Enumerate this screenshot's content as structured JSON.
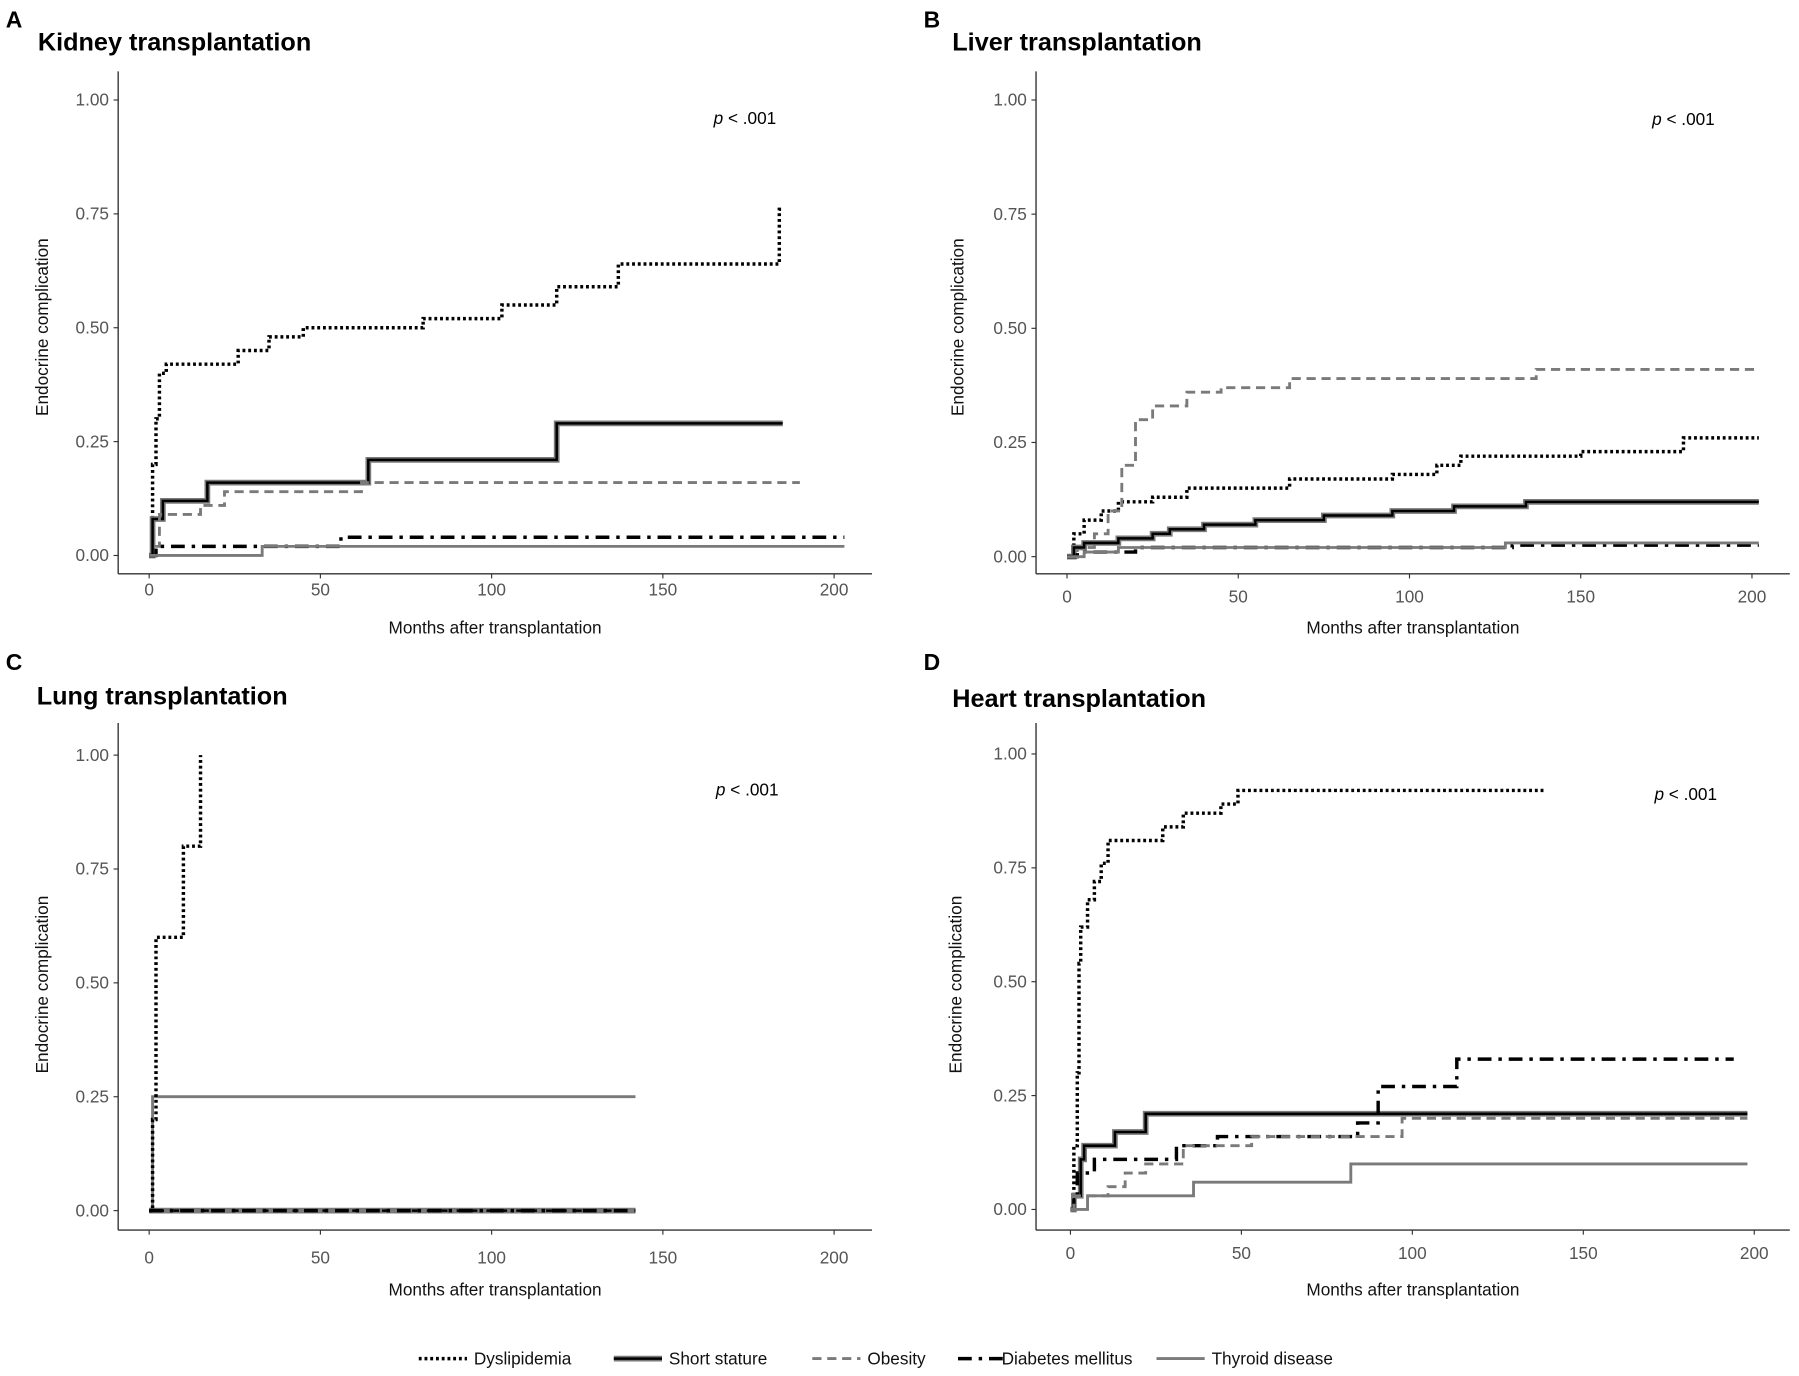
{
  "legend": [
    {
      "key": "dys",
      "label": "Dyslipidemia"
    },
    {
      "key": "short",
      "label": "Short stature"
    },
    {
      "key": "obes",
      "label": "Obesity"
    },
    {
      "key": "dm",
      "label": "Diabetes mellitus"
    },
    {
      "key": "thy",
      "label": "Thyroid disease"
    }
  ],
  "colors": {
    "dark": "#000000",
    "grey": "#7a7a7a",
    "axis": "#333333"
  },
  "chart_data": [
    {
      "type": "line",
      "letter": "A",
      "title": "Kidney transplantation",
      "pvalue_prefix": "p",
      "pvalue": " < .001",
      "xlabel": "Months after transplantation",
      "ylabel": "Endocrine complication",
      "xlim": [
        0,
        200
      ],
      "ylim": [
        0,
        1
      ],
      "xticks": [
        "0",
        "50",
        "100",
        "150",
        "200"
      ],
      "yticks": [
        "0.00",
        "0.25",
        "0.50",
        "0.75",
        "1.00"
      ],
      "series": [
        {
          "key": "dys",
          "steps": [
            [
              0,
              0
            ],
            [
              1,
              0.2
            ],
            [
              2,
              0.3
            ],
            [
              3,
              0.4
            ],
            [
              5,
              0.42
            ],
            [
              26,
              0.45
            ],
            [
              35,
              0.48
            ],
            [
              45,
              0.5
            ],
            [
              80,
              0.52
            ],
            [
              103,
              0.55
            ],
            [
              119,
              0.59
            ],
            [
              137,
              0.64
            ],
            [
              184,
              0.76
            ]
          ],
          "end": 185
        },
        {
          "key": "short",
          "steps": [
            [
              0,
              0
            ],
            [
              1,
              0.08
            ],
            [
              4,
              0.12
            ],
            [
              17,
              0.16
            ],
            [
              64,
              0.21
            ],
            [
              119,
              0.29
            ]
          ],
          "end": 185
        },
        {
          "key": "obes",
          "steps": [
            [
              0,
              0
            ],
            [
              2,
              0.02
            ],
            [
              3,
              0.09
            ],
            [
              15,
              0.11
            ],
            [
              22,
              0.14
            ],
            [
              62,
              0.16
            ]
          ],
          "end": 190
        },
        {
          "key": "dm",
          "steps": [
            [
              0,
              0
            ],
            [
              2,
              0.02
            ],
            [
              56,
              0.04
            ]
          ],
          "end": 203
        },
        {
          "key": "thy",
          "steps": [
            [
              0,
              0
            ],
            [
              33,
              0.02
            ]
          ],
          "end": 203
        }
      ]
    },
    {
      "type": "line",
      "letter": "B",
      "title": "Liver transplantation",
      "pvalue_prefix": "p",
      "pvalue": " < .001",
      "xlabel": "Months after transplantation",
      "ylabel": "Endocrine complication",
      "xlim": [
        0,
        200
      ],
      "ylim": [
        0,
        1
      ],
      "xticks": [
        "0",
        "50",
        "100",
        "150",
        "200"
      ],
      "yticks": [
        "0.00",
        "0.25",
        "0.50",
        "0.75",
        "1.00"
      ],
      "series": [
        {
          "key": "dys",
          "steps": [
            [
              0,
              0
            ],
            [
              2,
              0.05
            ],
            [
              5,
              0.08
            ],
            [
              10,
              0.1
            ],
            [
              15,
              0.12
            ],
            [
              25,
              0.13
            ],
            [
              35,
              0.15
            ],
            [
              65,
              0.17
            ],
            [
              95,
              0.18
            ],
            [
              108,
              0.2
            ],
            [
              115,
              0.22
            ],
            [
              150,
              0.23
            ],
            [
              180,
              0.26
            ]
          ],
          "end": 202
        },
        {
          "key": "obes",
          "steps": [
            [
              0,
              0
            ],
            [
              3,
              0.02
            ],
            [
              8,
              0.05
            ],
            [
              12,
              0.1
            ],
            [
              16,
              0.2
            ],
            [
              20,
              0.3
            ],
            [
              25,
              0.33
            ],
            [
              35,
              0.36
            ],
            [
              45,
              0.37
            ],
            [
              65,
              0.39
            ],
            [
              137,
              0.41
            ]
          ],
          "end": 202
        },
        {
          "key": "short",
          "steps": [
            [
              0,
              0
            ],
            [
              2,
              0.02
            ],
            [
              5,
              0.03
            ],
            [
              15,
              0.04
            ],
            [
              25,
              0.05
            ],
            [
              30,
              0.06
            ],
            [
              40,
              0.07
            ],
            [
              55,
              0.08
            ],
            [
              75,
              0.09
            ],
            [
              95,
              0.1
            ],
            [
              113,
              0.11
            ],
            [
              134,
              0.12
            ]
          ],
          "end": 202
        },
        {
          "key": "dm",
          "steps": [
            [
              0,
              0
            ],
            [
              3,
              0.01
            ],
            [
              20,
              0.02
            ],
            [
              130,
              0.025
            ]
          ],
          "end": 202
        },
        {
          "key": "thy",
          "steps": [
            [
              0,
              0
            ],
            [
              5,
              0.01
            ],
            [
              15,
              0.02
            ],
            [
              128,
              0.03
            ]
          ],
          "end": 202
        }
      ]
    },
    {
      "type": "line",
      "letter": "C",
      "title": "Lung transplantation",
      "pvalue_prefix": "p",
      "pvalue": " < .001",
      "xlabel": "Months after transplantation",
      "ylabel": "Endocrine complication",
      "xlim": [
        0,
        200
      ],
      "ylim": [
        0,
        1
      ],
      "xticks": [
        "0",
        "50",
        "100",
        "150",
        "200"
      ],
      "yticks": [
        "0.00",
        "0.25",
        "0.50",
        "0.75",
        "1.00"
      ],
      "series": [
        {
          "key": "thy",
          "steps": [
            [
              0,
              0
            ],
            [
              1,
              0.25
            ]
          ],
          "end": 142
        },
        {
          "key": "short",
          "steps": [
            [
              0,
              0
            ]
          ],
          "end": 142
        },
        {
          "key": "obes",
          "steps": [
            [
              0,
              0
            ]
          ],
          "end": 142
        },
        {
          "key": "dm",
          "steps": [
            [
              0,
              0
            ]
          ],
          "end": 142
        },
        {
          "key": "dys",
          "steps": [
            [
              0,
              0
            ],
            [
              1,
              0.2
            ],
            [
              2,
              0.6
            ],
            [
              10,
              0.8
            ],
            [
              15,
              1.0
            ]
          ],
          "end": 15
        }
      ]
    },
    {
      "type": "line",
      "letter": "D",
      "title": "Heart transplantation",
      "pvalue_prefix": "p",
      "pvalue": " < .001",
      "xlabel": "Months after transplantation",
      "ylabel": "Endocrine complication",
      "xlim": [
        0,
        200
      ],
      "ylim": [
        0,
        1
      ],
      "xticks": [
        "0",
        "50",
        "100",
        "150",
        "200"
      ],
      "yticks": [
        "0.00",
        "0.25",
        "0.50",
        "0.75",
        "1.00"
      ],
      "series": [
        {
          "key": "dys",
          "steps": [
            [
              0,
              0
            ],
            [
              1,
              0.14
            ],
            [
              2,
              0.3
            ],
            [
              2.5,
              0.54
            ],
            [
              3,
              0.62
            ],
            [
              5,
              0.68
            ],
            [
              7,
              0.72
            ],
            [
              9,
              0.76
            ],
            [
              11,
              0.81
            ],
            [
              27,
              0.84
            ],
            [
              33,
              0.87
            ],
            [
              44,
              0.89
            ],
            [
              49,
              0.92
            ]
          ],
          "end": 139
        },
        {
          "key": "short",
          "steps": [
            [
              0,
              0
            ],
            [
              1,
              0.03
            ],
            [
              3,
              0.11
            ],
            [
              4,
              0.14
            ],
            [
              13,
              0.17
            ],
            [
              22,
              0.21
            ]
          ],
          "end": 198
        },
        {
          "key": "dm",
          "steps": [
            [
              0,
              0
            ],
            [
              1,
              0.03
            ],
            [
              2,
              0.08
            ],
            [
              7,
              0.11
            ],
            [
              31,
              0.14
            ],
            [
              43,
              0.16
            ],
            [
              84,
              0.19
            ],
            [
              90,
              0.27
            ],
            [
              113,
              0.33
            ]
          ],
          "end": 194
        },
        {
          "key": "obes",
          "steps": [
            [
              0,
              0
            ],
            [
              1,
              0.03
            ],
            [
              11,
              0.05
            ],
            [
              16,
              0.08
            ],
            [
              22,
              0.1
            ],
            [
              33,
              0.14
            ],
            [
              53,
              0.16
            ],
            [
              97,
              0.2
            ]
          ],
          "end": 198
        },
        {
          "key": "thy",
          "steps": [
            [
              0,
              0
            ],
            [
              5,
              0.03
            ],
            [
              36,
              0.06
            ],
            [
              82,
              0.1
            ]
          ],
          "end": 198
        }
      ]
    }
  ]
}
